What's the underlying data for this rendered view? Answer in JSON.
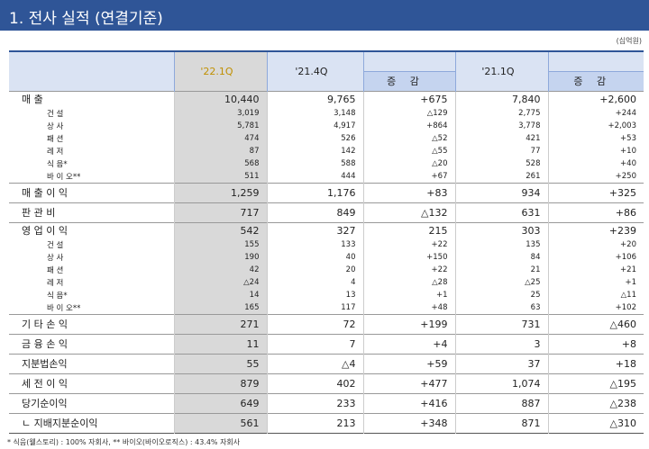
{
  "header": {
    "title": "1. 전사 실적 (연결기준)",
    "unit": "(십억원)"
  },
  "table": {
    "columns": [
      "'22.1Q",
      "'21.4Q",
      "증 감",
      "'21.1Q",
      "증 감"
    ],
    "groups": [
      {
        "label": "매 출",
        "values": [
          "10,440",
          "9,765",
          "+675",
          "7,840",
          "+2,600"
        ],
        "items": [
          {
            "label": "건 설",
            "values": [
              "3,019",
              "3,148",
              "△129",
              "2,775",
              "+244"
            ]
          },
          {
            "label": "상 사",
            "values": [
              "5,781",
              "4,917",
              "+864",
              "3,778",
              "+2,003"
            ]
          },
          {
            "label": "패 션",
            "values": [
              "474",
              "526",
              "△52",
              "421",
              "+53"
            ]
          },
          {
            "label": "레 저",
            "values": [
              "87",
              "142",
              "△55",
              "77",
              "+10"
            ]
          },
          {
            "label": "식 음*",
            "values": [
              "568",
              "588",
              "△20",
              "528",
              "+40"
            ]
          },
          {
            "label": "바 이 오**",
            "values": [
              "511",
              "444",
              "+67",
              "261",
              "+250"
            ]
          }
        ]
      },
      {
        "label": "매 출 이 익",
        "values": [
          "1,259",
          "1,176",
          "+83",
          "934",
          "+325"
        ]
      },
      {
        "label": "판 관 비",
        "values": [
          "717",
          "849",
          "△132",
          "631",
          "+86"
        ]
      },
      {
        "label": "영 업 이 익",
        "values": [
          "542",
          "327",
          "215",
          "303",
          "+239"
        ],
        "items": [
          {
            "label": "건 설",
            "values": [
              "155",
              "133",
              "+22",
              "135",
              "+20"
            ]
          },
          {
            "label": "상 사",
            "values": [
              "190",
              "40",
              "+150",
              "84",
              "+106"
            ]
          },
          {
            "label": "패 션",
            "values": [
              "42",
              "20",
              "+22",
              "21",
              "+21"
            ]
          },
          {
            "label": "레 저",
            "values": [
              "△24",
              "4",
              "△28",
              "△25",
              "+1"
            ]
          },
          {
            "label": "식 음*",
            "values": [
              "14",
              "13",
              "+1",
              "25",
              "△11"
            ]
          },
          {
            "label": "바 이 오**",
            "values": [
              "165",
              "117",
              "+48",
              "63",
              "+102"
            ]
          }
        ]
      },
      {
        "label": "기 타 손 익",
        "values": [
          "271",
          "72",
          "+199",
          "731",
          "△460"
        ]
      },
      {
        "label": "금 융 손 익",
        "values": [
          "11",
          "7",
          "+4",
          "3",
          "+8"
        ]
      },
      {
        "label": "지분법손익",
        "values": [
          "55",
          "△4",
          "+59",
          "37",
          "+18"
        ]
      },
      {
        "label": "세 전 이 익",
        "values": [
          "879",
          "402",
          "+477",
          "1,074",
          "△195"
        ]
      },
      {
        "label": "당기순이익",
        "values": [
          "649",
          "233",
          "+416",
          "887",
          "△238"
        ]
      },
      {
        "label": "ㄴ 지배지분순이익",
        "values": [
          "561",
          "213",
          "+348",
          "871",
          "△310"
        ]
      }
    ]
  },
  "footnote": "* 식음(웰스토리) : 100% 자회사, ** 바이오(바이오로직스) : 43.4% 자회사"
}
